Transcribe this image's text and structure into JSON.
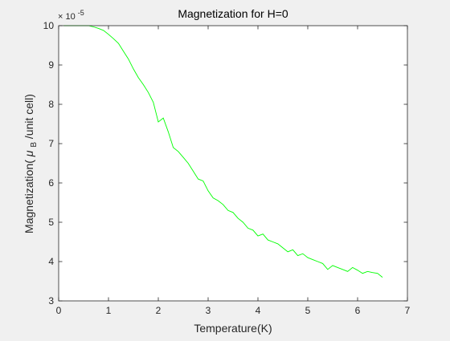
{
  "chart_data": {
    "type": "line",
    "title": "Magnetization for H=0",
    "xlabel": "Temperature(K)",
    "ylabel": {
      "prefix": "Magnetization(",
      "mu": "μ",
      "subscript": "B",
      "suffix": "/unit cell)"
    },
    "y_multiplier": {
      "base": "× 10",
      "exponent": "-5"
    },
    "xlim": [
      0,
      7
    ],
    "ylim": [
      3,
      10
    ],
    "x_ticks": [
      "0",
      "1",
      "2",
      "3",
      "4",
      "5",
      "6",
      "7"
    ],
    "y_ticks": [
      "3",
      "4",
      "5",
      "6",
      "7",
      "8",
      "9",
      "10"
    ],
    "grid": false,
    "box": true,
    "series": [
      {
        "color": "#00ff00",
        "x": [
          0.1,
          0.2,
          0.3,
          0.4,
          0.5,
          0.6,
          0.7,
          0.8,
          0.9,
          1.0,
          1.1,
          1.2,
          1.3,
          1.4,
          1.5,
          1.6,
          1.7,
          1.8,
          1.9,
          2.0,
          2.1,
          2.2,
          2.3,
          2.4,
          2.5,
          2.6,
          2.7,
          2.8,
          2.9,
          3.0,
          3.1,
          3.2,
          3.3,
          3.4,
          3.5,
          3.6,
          3.7,
          3.8,
          3.9,
          4.0,
          4.1,
          4.2,
          4.3,
          4.4,
          4.5,
          4.6,
          4.7,
          4.8,
          4.9,
          5.0,
          5.1,
          5.2,
          5.3,
          5.4,
          5.5,
          5.6,
          5.7,
          5.8,
          5.9,
          6.0,
          6.1,
          6.2,
          6.3,
          6.4,
          6.5
        ],
        "y": [
          10.0,
          10.0,
          10.0,
          10.0,
          10.0,
          10.0,
          9.97,
          9.93,
          9.88,
          9.78,
          9.67,
          9.55,
          9.35,
          9.15,
          8.9,
          8.68,
          8.5,
          8.3,
          8.05,
          7.55,
          7.65,
          7.3,
          6.9,
          6.8,
          6.65,
          6.5,
          6.3,
          6.1,
          6.05,
          5.8,
          5.62,
          5.55,
          5.45,
          5.3,
          5.25,
          5.1,
          5.0,
          4.85,
          4.8,
          4.65,
          4.7,
          4.55,
          4.5,
          4.45,
          4.35,
          4.25,
          4.3,
          4.15,
          4.2,
          4.1,
          4.05,
          4.0,
          3.95,
          3.8,
          3.9,
          3.85,
          3.8,
          3.75,
          3.85,
          3.78,
          3.7,
          3.75,
          3.72,
          3.7,
          3.6
        ]
      }
    ]
  }
}
